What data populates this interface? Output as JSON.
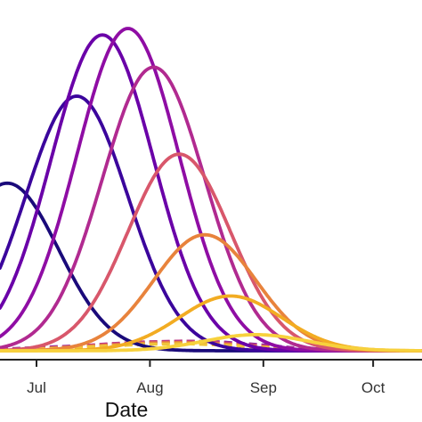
{
  "chart_data": {
    "type": "line",
    "title": "",
    "xlabel": "Date",
    "ylabel": "",
    "x_ticks": [
      {
        "label": "Jul",
        "value": 0
      },
      {
        "label": "Aug",
        "value": 31
      },
      {
        "label": "Sep",
        "value": 62
      },
      {
        "label": "Oct",
        "value": 92
      }
    ],
    "xlim": [
      -10,
      105
    ],
    "ylim": [
      0,
      1.0
    ],
    "grid": false,
    "legend": "none",
    "peak_series": [
      {
        "color": "#1a0a7a",
        "peak_day": -8,
        "peak": 0.52,
        "sigma": 14
      },
      {
        "color": "#3b059c",
        "peak_day": 11,
        "peak": 0.79,
        "sigma": 14
      },
      {
        "color": "#6a00a8",
        "peak_day": 18,
        "peak": 0.98,
        "sigma": 14
      },
      {
        "color": "#8f0da4",
        "peak_day": 25,
        "peak": 1.0,
        "sigma": 14
      },
      {
        "color": "#b12a90",
        "peak_day": 32,
        "peak": 0.88,
        "sigma": 14
      },
      {
        "color": "#d8576b",
        "peak_day": 39,
        "peak": 0.61,
        "sigma": 14
      },
      {
        "color": "#e8833c",
        "peak_day": 46,
        "peak": 0.36,
        "sigma": 14
      },
      {
        "color": "#f2ac22",
        "peak_day": 53,
        "peak": 0.17,
        "sigma": 14
      },
      {
        "color": "#f7d13d",
        "peak_day": 60,
        "peak": 0.05,
        "sigma": 14
      }
    ],
    "baseline_series": [
      {
        "color": "#7a1da0",
        "values": [
          0.005,
          0.01,
          0.015,
          0.02,
          0.025,
          0.03,
          0.028,
          0.02,
          0.01,
          0.004
        ]
      },
      {
        "color": "#c13b82",
        "values": [
          0.004,
          0.008,
          0.014,
          0.022,
          0.028,
          0.03,
          0.026,
          0.018,
          0.008,
          0.003
        ]
      },
      {
        "color": "#e8833c",
        "values": [
          0.003,
          0.006,
          0.012,
          0.018,
          0.024,
          0.026,
          0.022,
          0.014,
          0.006,
          0.002
        ]
      },
      {
        "color": "#f0c43a",
        "values": [
          0.002,
          0.005,
          0.01,
          0.015,
          0.02,
          0.022,
          0.018,
          0.012,
          0.005,
          0.002
        ]
      }
    ],
    "baseline_x": [
      -10,
      0,
      10,
      20,
      30,
      40,
      50,
      60,
      70,
      80
    ]
  }
}
